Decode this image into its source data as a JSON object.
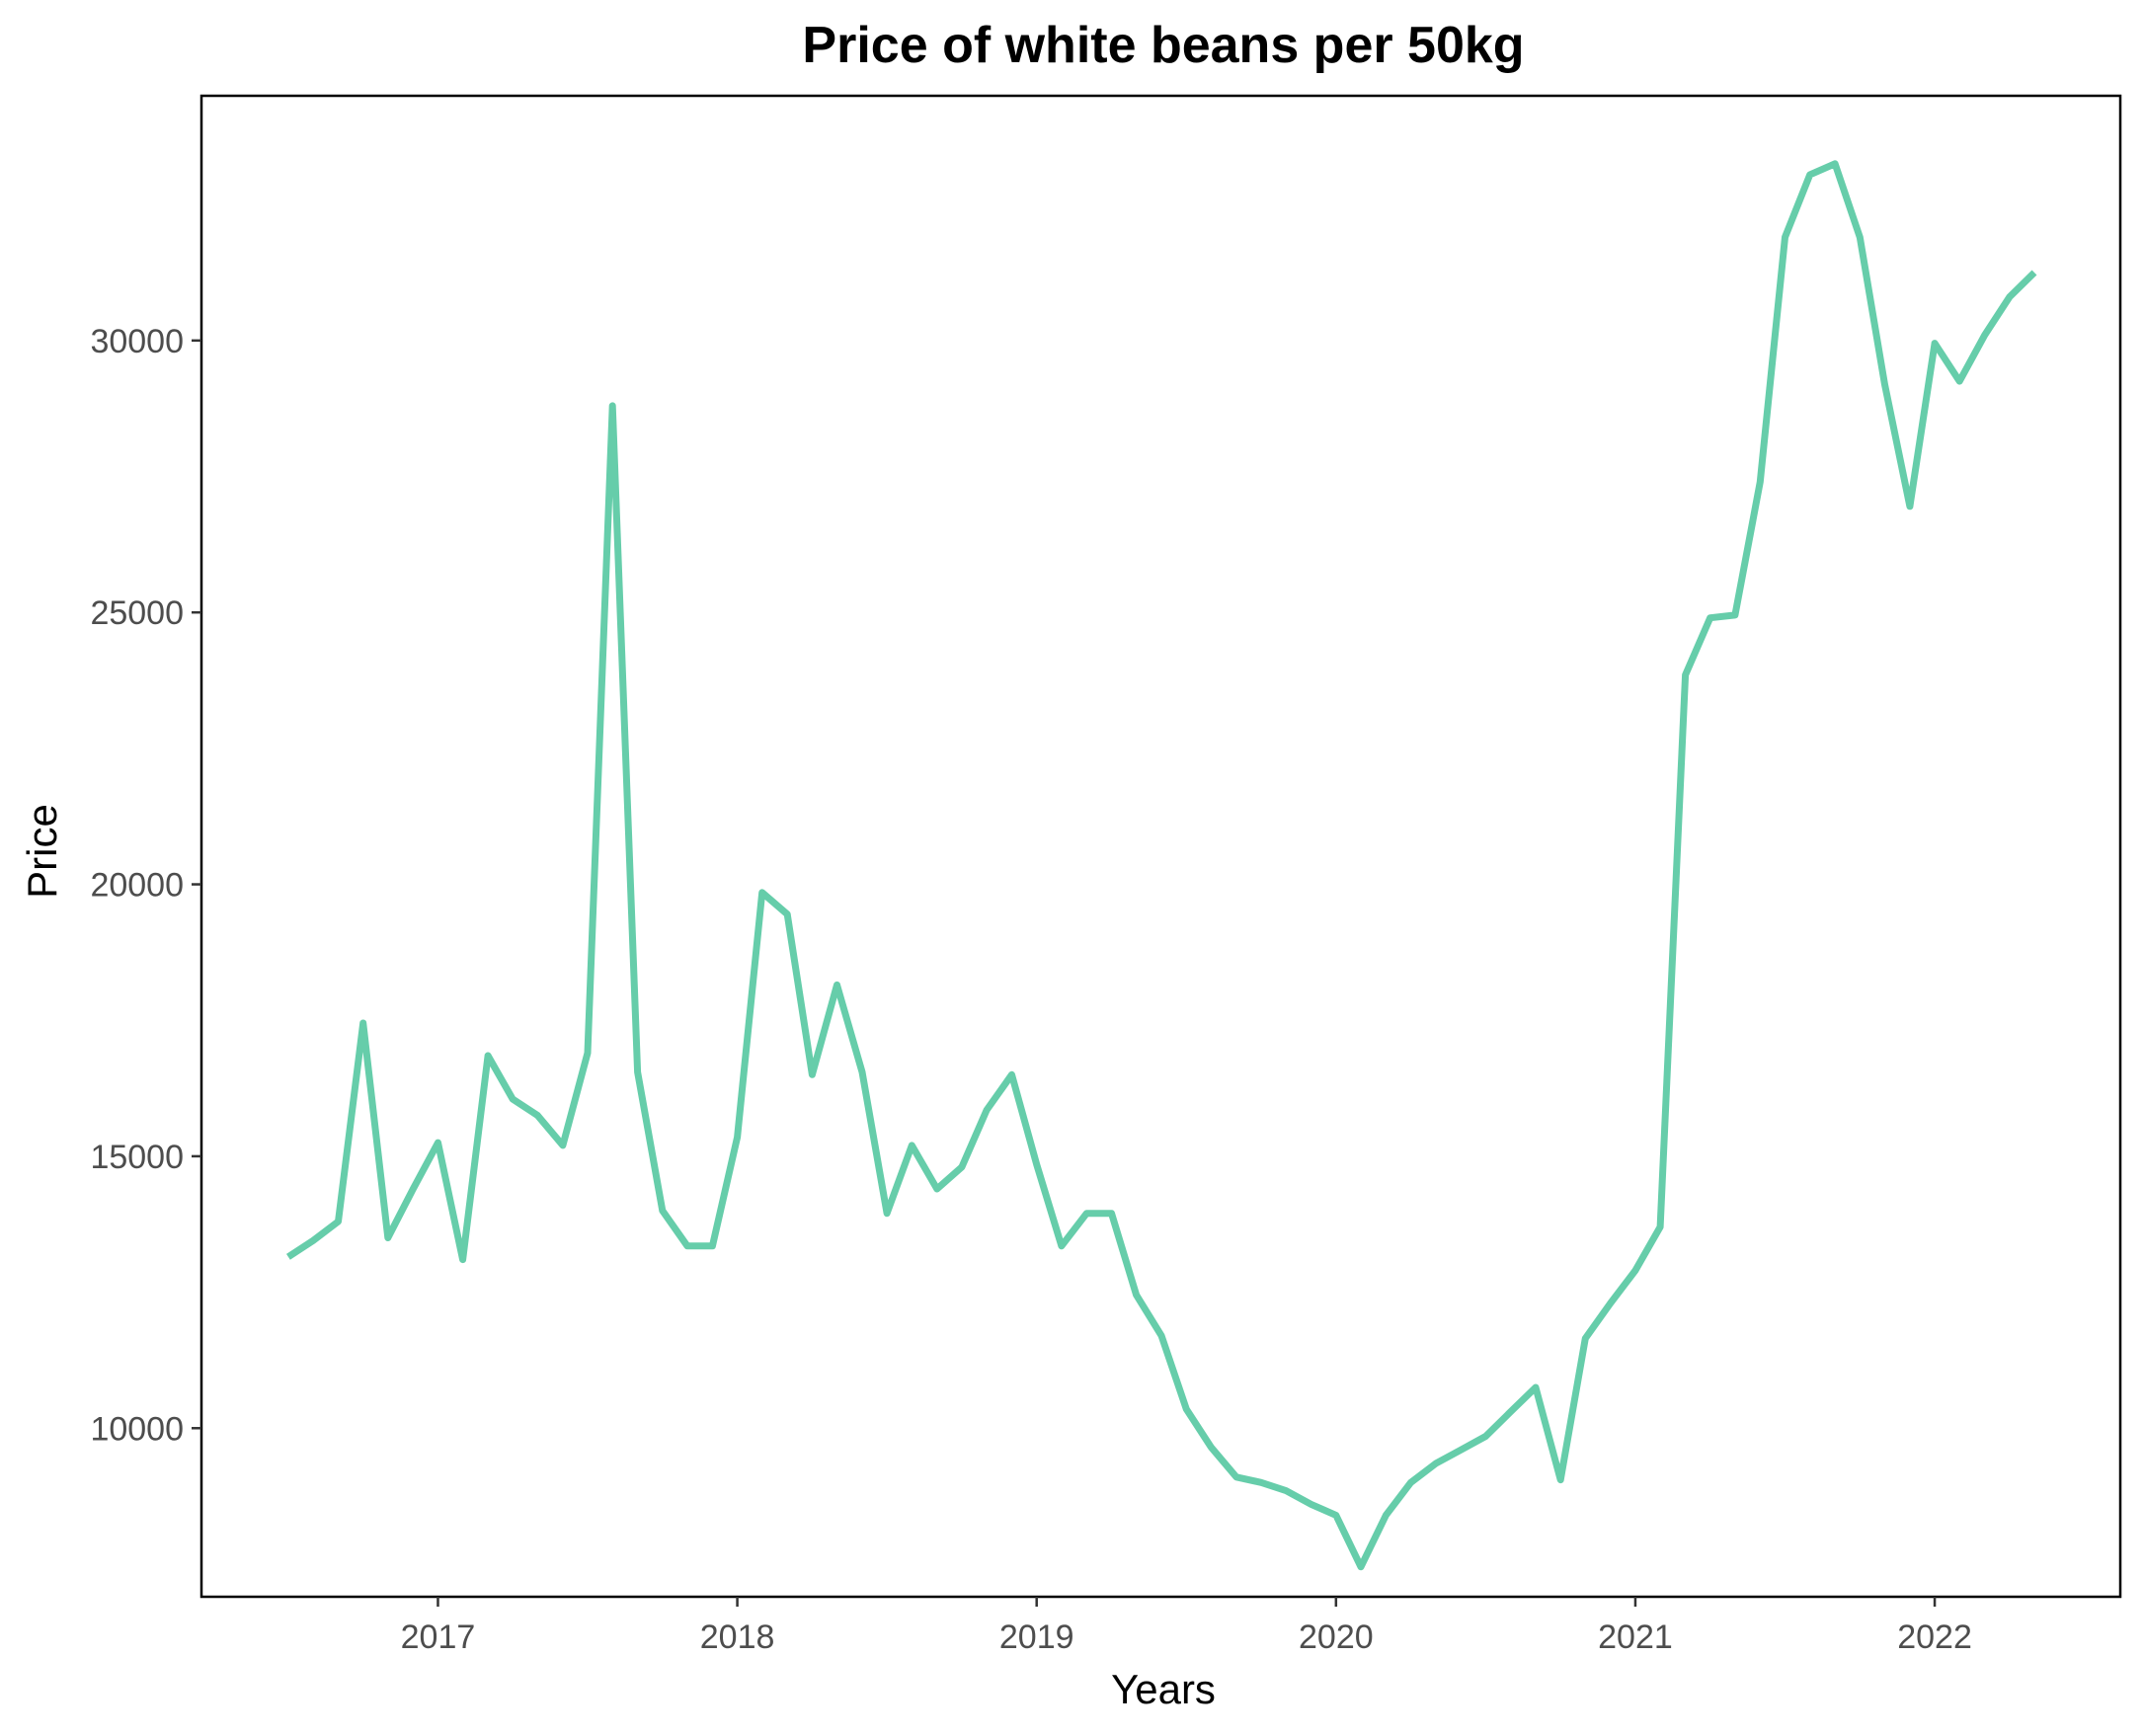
{
  "chart_data": {
    "type": "line",
    "title": "Price of white beans per 50kg",
    "xlabel": "Years",
    "ylabel": "Price",
    "xlim": [
      2016.21,
      2022.62
    ],
    "ylim": [
      6900,
      34500
    ],
    "x_ticks": [
      2017,
      2018,
      2019,
      2020,
      2021,
      2022
    ],
    "x_tick_labels": [
      "2017",
      "2018",
      "2019",
      "2020",
      "2021",
      "2022"
    ],
    "y_ticks": [
      10000,
      15000,
      20000,
      25000,
      30000
    ],
    "y_tick_labels": [
      "10000",
      "15000",
      "20000",
      "25000",
      "30000"
    ],
    "grid": false,
    "legend": "none",
    "line_color": "#66CDAA",
    "series": [
      {
        "x": [
          2016.5,
          2016.583,
          2016.667,
          2016.75,
          2016.833,
          2016.917,
          2017.0,
          2017.083,
          2017.167,
          2017.25,
          2017.333,
          2017.417,
          2017.5,
          2017.583,
          2017.667,
          2017.75,
          2017.833,
          2017.917,
          2018.0,
          2018.083,
          2018.167,
          2018.25,
          2018.333,
          2018.417,
          2018.5,
          2018.583,
          2018.667,
          2018.75,
          2018.833,
          2018.917,
          2019.0,
          2019.083,
          2019.167,
          2019.25,
          2019.333,
          2019.417,
          2019.5,
          2019.583,
          2019.667,
          2019.75,
          2019.833,
          2019.917,
          2020.0,
          2020.083,
          2020.167,
          2020.25,
          2020.333,
          2020.417,
          2020.5,
          2020.583,
          2020.667,
          2020.75,
          2020.833,
          2020.917,
          2021.0,
          2021.083,
          2021.167,
          2021.25,
          2021.333,
          2021.417,
          2021.5,
          2021.583,
          2021.667,
          2021.75,
          2021.833,
          2021.917,
          2022.0,
          2022.083,
          2022.167,
          2022.25,
          2022.333
        ],
        "values": [
          13150,
          13450,
          13800,
          17450,
          13500,
          14400,
          15250,
          13100,
          16850,
          16050,
          15750,
          15200,
          16900,
          28800,
          16550,
          14000,
          13350,
          13350,
          15350,
          19850,
          19450,
          16500,
          18150,
          16550,
          13950,
          15200,
          14400,
          14800,
          15850,
          16500,
          14850,
          13350,
          13950,
          13950,
          12450,
          11700,
          10350,
          9650,
          9100,
          9000,
          8850,
          8600,
          8400,
          7450,
          8400,
          9000,
          9350,
          9600,
          9850,
          10300,
          10750,
          9050,
          11650,
          12300,
          12900,
          13700,
          23850,
          24900,
          24950,
          27400,
          31900,
          33050,
          33250,
          31900,
          29200,
          26950,
          29950,
          29250,
          30100,
          30800,
          31250
        ]
      }
    ]
  }
}
